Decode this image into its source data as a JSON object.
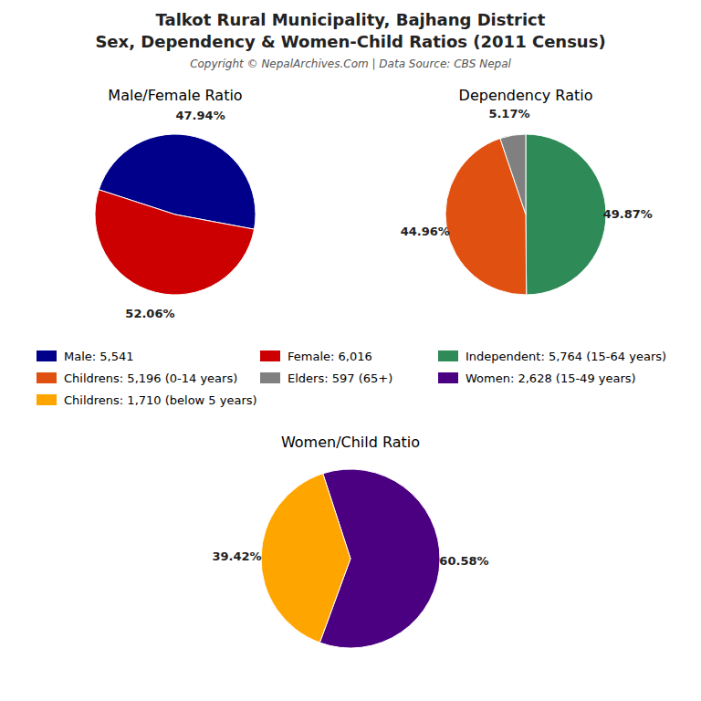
{
  "title": "Talkot Rural Municipality, Bajhang District",
  "subtitle": "Sex, Dependency & Women-Child Ratios (2011 Census)",
  "annotations": [
    "Copyright © NepalArchives.Com | Data Source: CBS Nepal"
  ],
  "chart_data": [
    {
      "type": "pie",
      "title": "Male/Female Ratio",
      "categories": [
        "Male: 5,541",
        "Female: 6,016"
      ],
      "values": [
        47.94,
        52.06
      ],
      "value_labels": [
        "47.94%",
        "52.06%"
      ],
      "colors": [
        "#00008B",
        "#CC0000"
      ],
      "data_labels": true
    },
    {
      "type": "pie",
      "title": "Dependency Ratio",
      "categories": [
        "Independent: 5,764 (15-64 years)",
        "Childrens: 5,196 (0-14 years)",
        "Elders: 597 (65+)"
      ],
      "values": [
        49.87,
        44.96,
        5.17
      ],
      "value_labels": [
        "49.87%",
        "44.96%",
        "5.17%"
      ],
      "colors": [
        "#2E8B57",
        "#E05010",
        "#808080"
      ],
      "data_labels": true
    },
    {
      "type": "pie",
      "title": "Women/Child Ratio",
      "categories": [
        "Women: 2,628 (15-49 years)",
        "Childrens: 1,710 (below 5 years)"
      ],
      "values": [
        60.58,
        39.42
      ],
      "value_labels": [
        "60.58%",
        "39.42%"
      ],
      "colors": [
        "#4B0082",
        "#FFA500"
      ],
      "data_labels": true
    }
  ]
}
